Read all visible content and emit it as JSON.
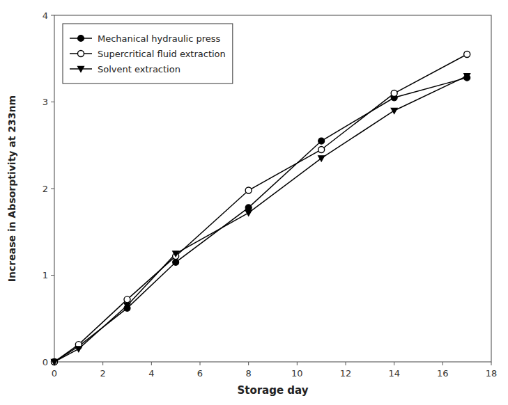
{
  "chart_data": {
    "type": "line",
    "xlabel": "Storage day",
    "ylabel": "Increase in Absorptivity at 233nm",
    "x": [
      0,
      1,
      3,
      5,
      8,
      11,
      14,
      17
    ],
    "series": [
      {
        "name": "Mechanical hydraulic press",
        "color": "black",
        "marker": "circle",
        "values": [
          0.0,
          0.18,
          0.62,
          1.15,
          1.78,
          2.55,
          3.05,
          3.28
        ]
      },
      {
        "name": "Supercritical fluid extraction",
        "color": "black",
        "marker": "open-circle",
        "values": [
          0.0,
          0.2,
          0.72,
          1.22,
          1.98,
          2.45,
          3.1,
          3.55
        ]
      },
      {
        "name": "Solvent extraction",
        "color": "black",
        "marker": "triangle-down",
        "values": [
          0.0,
          0.15,
          0.65,
          1.25,
          1.72,
          2.35,
          2.9,
          3.3
        ]
      }
    ],
    "xlim": [
      0,
      18
    ],
    "ylim": [
      0,
      4
    ],
    "xticks": [
      0,
      2,
      4,
      6,
      8,
      10,
      12,
      14,
      16,
      18
    ],
    "yticks": [
      0,
      1,
      2,
      3,
      4
    ],
    "grid": false,
    "legend": "upper left"
  }
}
